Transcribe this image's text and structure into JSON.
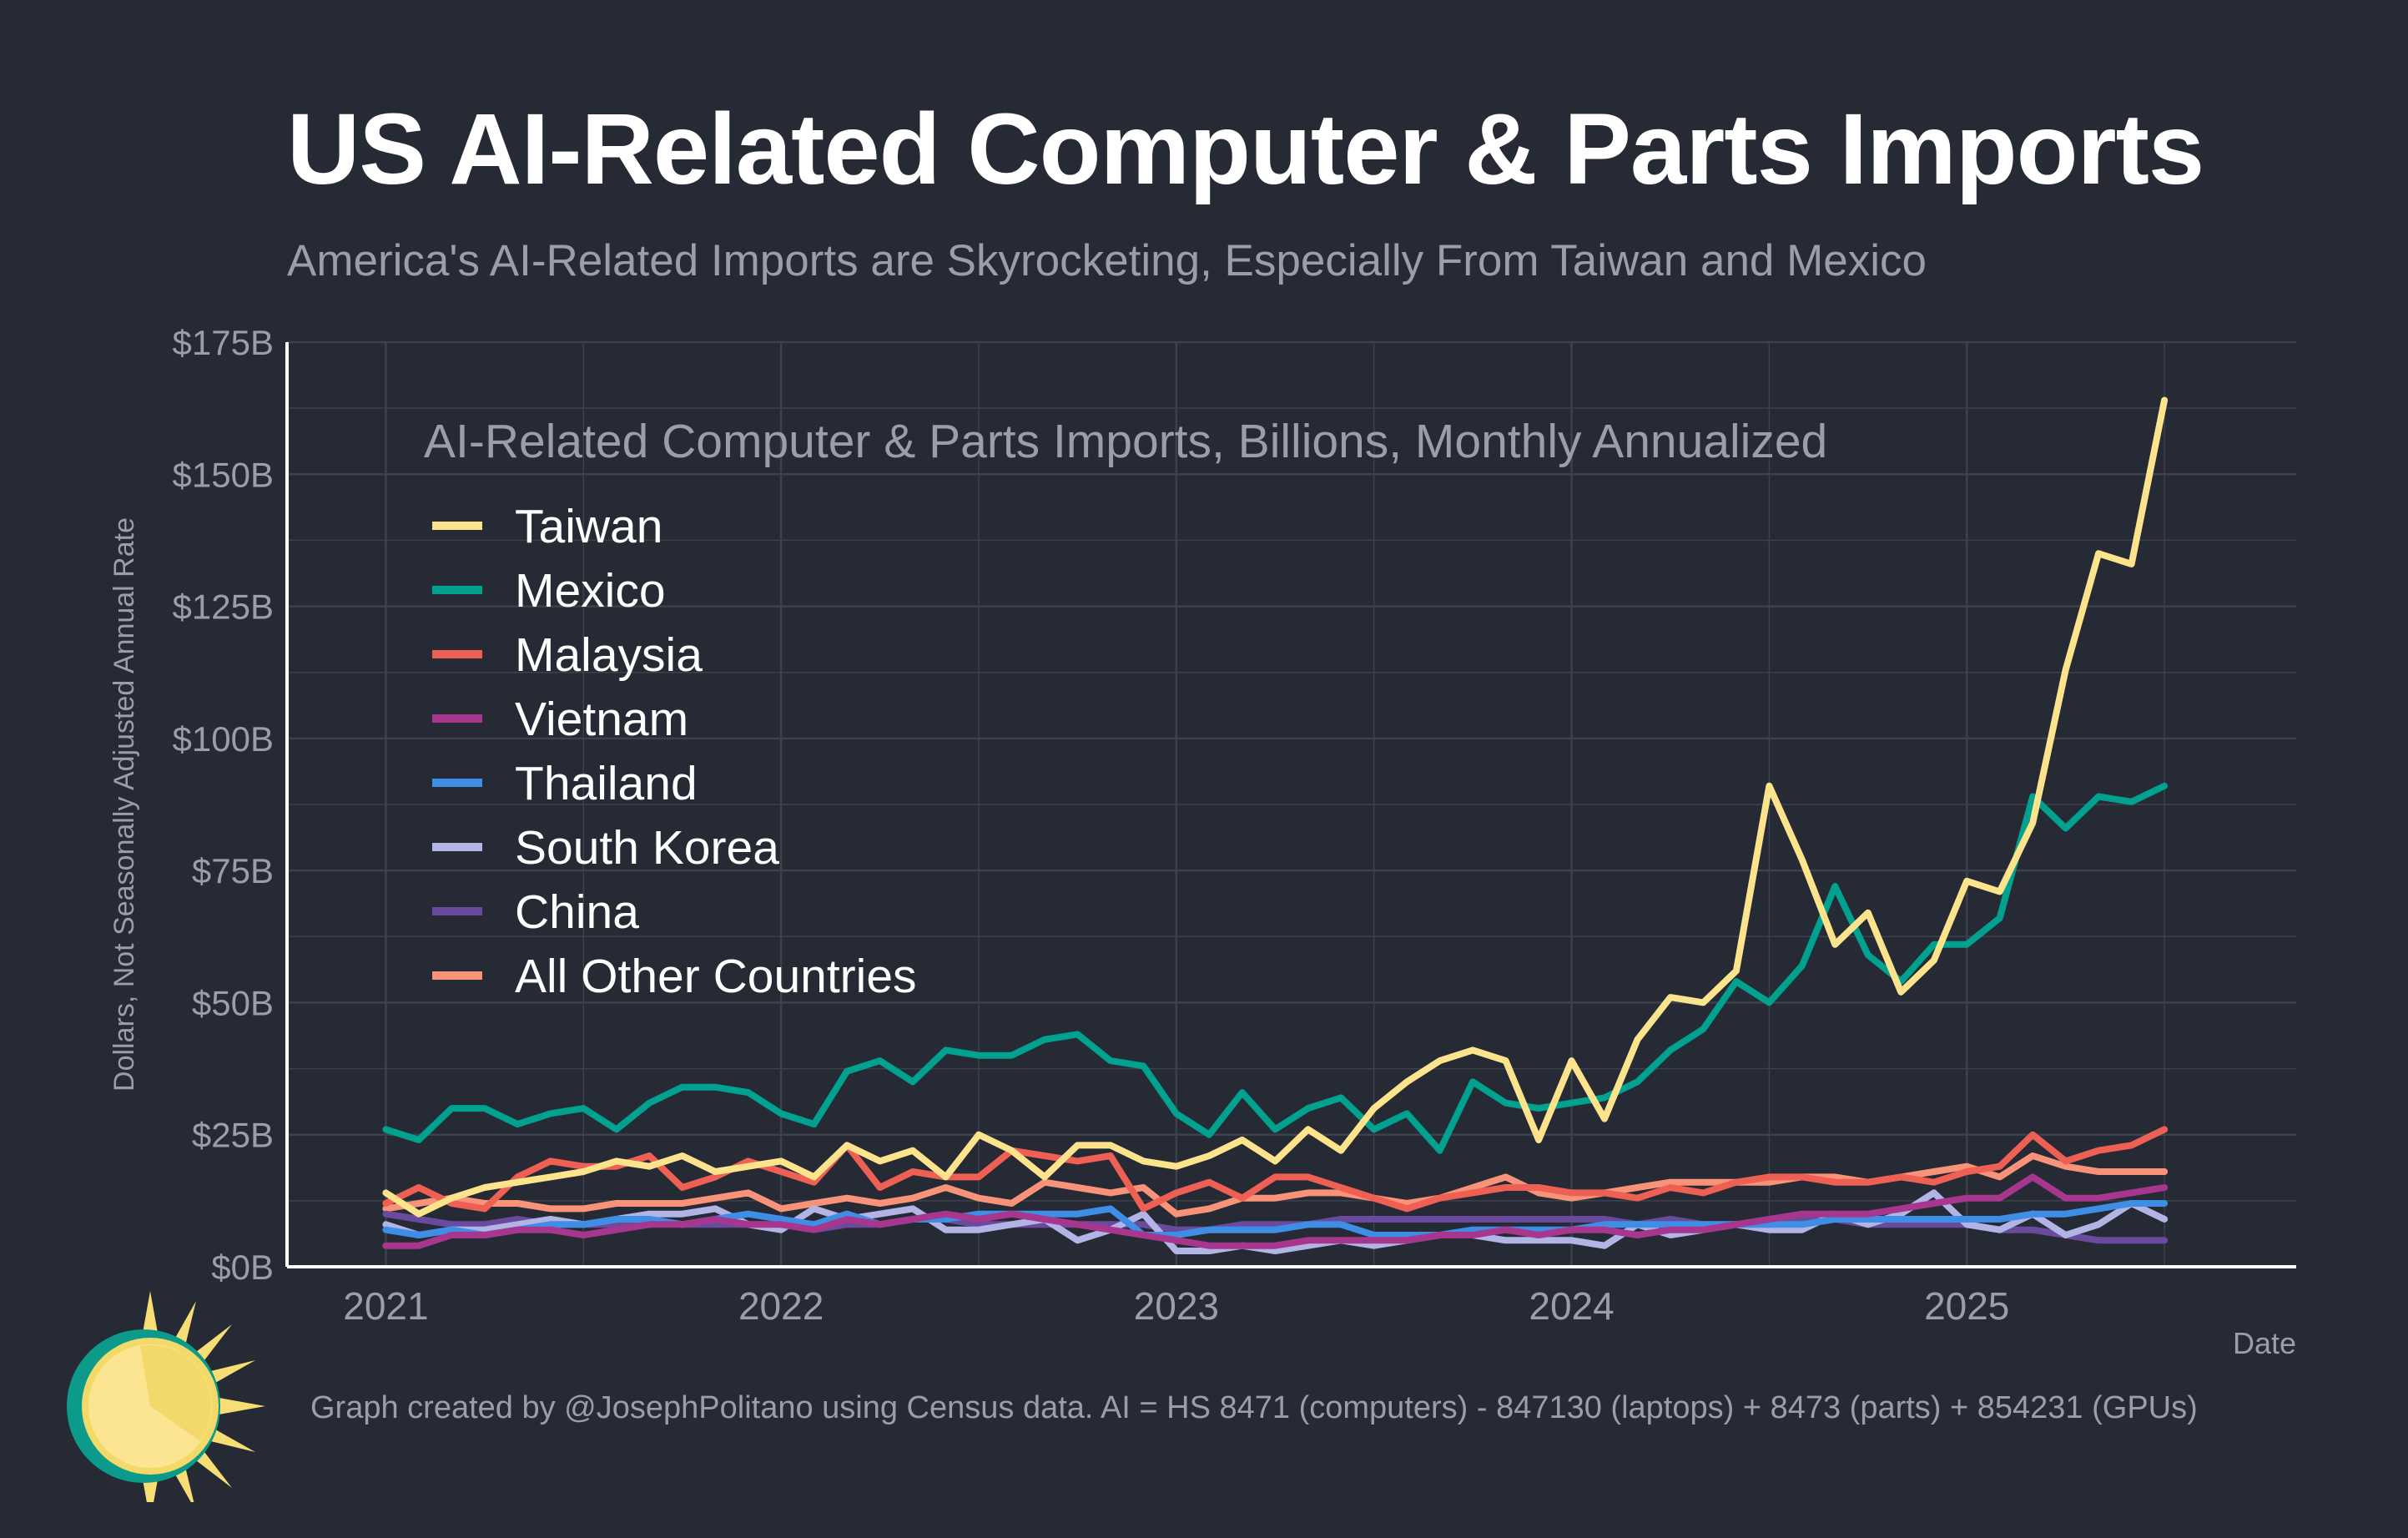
{
  "title": "US AI-Related Computer & Parts Imports",
  "subtitle": "America's AI-Related Imports are Skyrocketing, Especially From Taiwan and Mexico",
  "footer": "Graph created by @JosephPolitano using Census data. AI = HS 8471 (computers) - 847130 (laptops) + 8473 (parts) + 854231 (GPUs)",
  "colors": {
    "background": "#252a34",
    "grid": "#3c414c",
    "axis": "#ffffff",
    "muted_text": "#9b9ea6"
  },
  "chart_data": {
    "type": "line",
    "title": "AI-Related Computer & Parts Imports, Billions, Monthly Annualized",
    "xlabel": "Date",
    "ylabel": "Dollars, Not Seasonally Adjusted Annual Rate",
    "x_start": "2021-01",
    "x_end": "2025-06",
    "xlim": [
      "2020-10",
      "2025-11"
    ],
    "x_ticks": [
      "2021",
      "2022",
      "2023",
      "2024",
      "2025"
    ],
    "ylim": [
      0,
      175
    ],
    "y_ticks": [
      "$0B",
      "$25B",
      "$50B",
      "$75B",
      "$100B",
      "$125B",
      "$150B",
      "$175B"
    ],
    "grid": true,
    "legend_position": "top-left",
    "series": [
      {
        "name": "Taiwan",
        "color": "#fde48c",
        "values": [
          14,
          10,
          13,
          15,
          16,
          17,
          18,
          20,
          19,
          21,
          18,
          19,
          20,
          17,
          23,
          20,
          22,
          17,
          25,
          22,
          17,
          23,
          23,
          20,
          19,
          21,
          24,
          20,
          26,
          22,
          30,
          35,
          39,
          41,
          39,
          24,
          39,
          28,
          43,
          51,
          50,
          56,
          91,
          77,
          61,
          67,
          52,
          58,
          73,
          71,
          84,
          113,
          135,
          133,
          164
        ]
      },
      {
        "name": "Mexico",
        "color": "#00a28f",
        "values": [
          26,
          24,
          30,
          30,
          27,
          29,
          30,
          26,
          31,
          34,
          34,
          33,
          29,
          27,
          37,
          39,
          35,
          41,
          40,
          40,
          43,
          44,
          39,
          38,
          29,
          25,
          33,
          26,
          30,
          32,
          26,
          29,
          22,
          35,
          31,
          30,
          31,
          32,
          35,
          41,
          45,
          54,
          50,
          57,
          72,
          59,
          54,
          61,
          61,
          66,
          89,
          83,
          89,
          88,
          91
        ]
      },
      {
        "name": "Malaysia",
        "color": "#ef6054",
        "values": [
          12,
          15,
          12,
          11,
          17,
          20,
          19,
          19,
          21,
          15,
          17,
          20,
          18,
          16,
          23,
          15,
          18,
          17,
          17,
          22,
          21,
          20,
          21,
          11,
          14,
          16,
          13,
          17,
          17,
          15,
          13,
          11,
          13,
          14,
          15,
          15,
          14,
          14,
          13,
          15,
          14,
          16,
          17,
          17,
          16,
          16,
          17,
          16,
          18,
          19,
          25,
          20,
          22,
          23,
          26
        ]
      },
      {
        "name": "Vietnam",
        "color": "#a6368e",
        "values": [
          4,
          4,
          6,
          6,
          7,
          7,
          6,
          7,
          8,
          8,
          9,
          8,
          8,
          7,
          9,
          8,
          9,
          10,
          9,
          10,
          9,
          8,
          7,
          6,
          5,
          4,
          4,
          4,
          5,
          5,
          5,
          5,
          6,
          6,
          7,
          6,
          7,
          7,
          6,
          7,
          7,
          8,
          9,
          10,
          10,
          10,
          11,
          12,
          13,
          13,
          17,
          13,
          13,
          14,
          15
        ]
      },
      {
        "name": "Thailand",
        "color": "#3e8ee6",
        "values": [
          7,
          6,
          7,
          6,
          7,
          8,
          8,
          9,
          9,
          8,
          9,
          10,
          9,
          8,
          10,
          8,
          9,
          9,
          10,
          10,
          10,
          10,
          11,
          6,
          6,
          7,
          7,
          7,
          8,
          8,
          6,
          6,
          6,
          7,
          7,
          7,
          7,
          8,
          8,
          8,
          8,
          8,
          8,
          8,
          9,
          9,
          9,
          9,
          9,
          9,
          10,
          10,
          11,
          12,
          12
        ]
      },
      {
        "name": "South Korea",
        "color": "#b2b4e5",
        "values": [
          8,
          6,
          7,
          7,
          8,
          9,
          8,
          9,
          10,
          10,
          11,
          8,
          7,
          11,
          9,
          10,
          11,
          7,
          7,
          8,
          9,
          5,
          7,
          10,
          3,
          3,
          4,
          3,
          4,
          5,
          4,
          5,
          6,
          6,
          5,
          5,
          5,
          4,
          8,
          6,
          7,
          8,
          7,
          7,
          10,
          8,
          10,
          14,
          8,
          7,
          10,
          6,
          8,
          12,
          9
        ]
      },
      {
        "name": "China",
        "color": "#6a4a9c",
        "values": [
          10,
          9,
          8,
          8,
          9,
          8,
          8,
          8,
          9,
          8,
          8,
          8,
          8,
          7,
          8,
          8,
          9,
          9,
          8,
          8,
          8,
          8,
          8,
          8,
          7,
          7,
          8,
          8,
          8,
          9,
          9,
          9,
          9,
          9,
          9,
          9,
          9,
          9,
          8,
          9,
          8,
          8,
          8,
          9,
          9,
          8,
          8,
          8,
          8,
          7,
          7,
          6,
          5,
          5,
          5
        ]
      },
      {
        "name": "All Other Countries",
        "color": "#f89379",
        "values": [
          11,
          12,
          13,
          12,
          12,
          11,
          11,
          12,
          12,
          12,
          13,
          14,
          11,
          12,
          13,
          12,
          13,
          15,
          13,
          12,
          16,
          15,
          14,
          15,
          10,
          11,
          13,
          13,
          14,
          14,
          13,
          12,
          13,
          15,
          17,
          14,
          13,
          14,
          15,
          16,
          16,
          16,
          16,
          17,
          17,
          16,
          17,
          18,
          19,
          17,
          21,
          19,
          18,
          18,
          18
        ]
      }
    ]
  }
}
